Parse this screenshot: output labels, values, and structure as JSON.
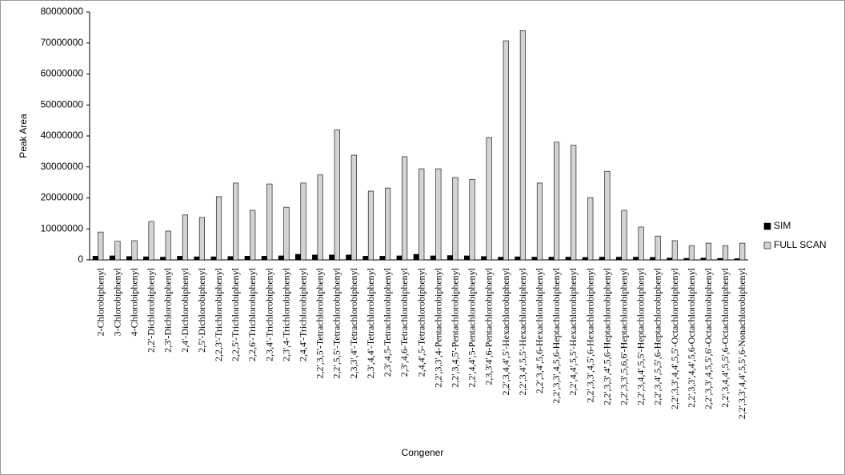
{
  "chart_data": {
    "type": "bar",
    "x_label": "Congener",
    "y_label": "Peak Area",
    "categories": [
      "2-Chlorobiphenyl",
      "3-Chlorobiphenyl",
      "4-Chlorobiphenyl",
      "2,2'-Dichlorobiphenyl",
      "2,3'-Dichlorobiphenyl",
      "2,4'-Dichlorobiphenyl",
      "2,5'-Dichlorobiphenyl",
      "2,2,3'-Trichlorobiphenyl",
      "2,2,5'-Trichlorobiphenyl",
      "2,2,6'-Trichlorobiphenyl",
      "2,3,4'-Trichlorobiphenyl",
      "2,3',4-Trichlorobiphenyl",
      "2,4,4'-Trichlorobiphenyl",
      "2,2',3,5'-Tetrachlorobiphenyl",
      "2,2',5,5'-Tetrachlorobiphenyl",
      "2,3,3',4'-Tetrachlorobiphenyl",
      "2,3',4,4'-Tetrachlorobiphenyl",
      "2,3',4,5-Tetrachlorobiphenyl",
      "2,3',4,6-Tetrachlorobiphenyl",
      "2,4,4',5-Tetrachlorobiphenyl",
      "2,2',3,3',4-Pentachlorobiphenyl",
      "2,2',3,4,5'-Pentachlorobiphenyl",
      "2,2',4,4',5-Pentachlorobiphenyl",
      "2,3,3'4',6-Pentachlorobiphenyl",
      "2,2',3,4,4',5'-Hexachlorobiphenyl",
      "2,2',3,4',5,5'-Hexachlorobiphenyl",
      "2,2',3,4',5,6-Hexachlorobiphenyl",
      "2,2',3,3',4,5,6-Heptachlorobiphenyl",
      "2,2',4,4',5,5'-Hexachlorobiphenyl",
      "2,2',3,3',4,5',6-Hexachlorobiphenyl",
      "2,2',3,3',4',5,6-Heptachlorobiphenyl",
      "2,2',3,3',5,6,6'-Heptachlorobiphenyl",
      "2,2',3,4,4',5,5'-Heptachlorobiphenyl",
      "2,2',3,4',5,5',6-Heptachlorobiphenyl",
      "2,2',3,3',4,4',5,5'-Octachlorobiphenyl",
      "2,2',3,3',4,4',5,6-Octachlorobiphenyl",
      "2,2',3,3',4,5,5',6'-Octachlorobiphenyl",
      "2,2',3,4,4',5,5',6-Octachlorobiphenyl",
      "2,2',3,3',4,4',5,5',6-Nonachlorobiphenyl"
    ],
    "series": [
      {
        "name": "SIM",
        "color": "#000000",
        "values": [
          1200000,
          1300000,
          1100000,
          1000000,
          900000,
          1200000,
          1000000,
          1000000,
          1100000,
          1200000,
          1200000,
          1300000,
          1800000,
          1600000,
          1600000,
          1600000,
          1200000,
          1200000,
          1300000,
          1800000,
          1300000,
          1400000,
          1300000,
          1100000,
          900000,
          1000000,
          900000,
          900000,
          900000,
          800000,
          900000,
          900000,
          900000,
          800000,
          600000,
          500000,
          600000,
          500000,
          400000
        ]
      },
      {
        "name": "FULL SCAN",
        "color": "#d3d3d3",
        "values": [
          9000000,
          6000000,
          6200000,
          12400000,
          9300000,
          14500000,
          13700000,
          20400000,
          24800000,
          16000000,
          24500000,
          17000000,
          24800000,
          27400000,
          42000000,
          33800000,
          22200000,
          23200000,
          33300000,
          29400000,
          29400000,
          26600000,
          26000000,
          39500000,
          70700000,
          74000000,
          24800000,
          38000000,
          37000000,
          20100000,
          28600000,
          16000000,
          10600000,
          7700000,
          6200000,
          4600000,
          5400000,
          4600000,
          5400000
        ]
      }
    ],
    "ylim": [
      0,
      80000000
    ],
    "yticks": [
      0,
      10000000,
      20000000,
      30000000,
      40000000,
      50000000,
      60000000,
      70000000,
      80000000
    ],
    "grid": false,
    "legend": "right"
  }
}
